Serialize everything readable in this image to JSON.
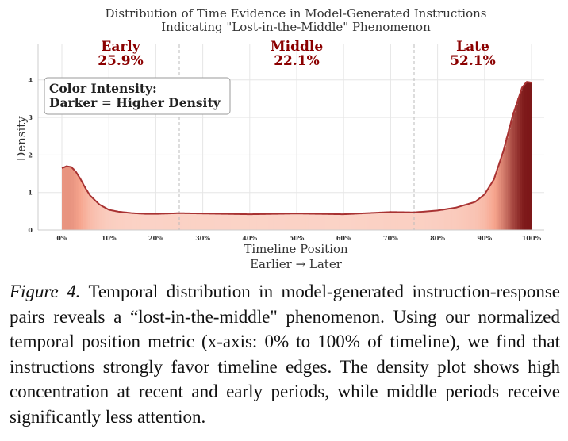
{
  "chart_data": {
    "type": "area",
    "title_lines": [
      "Distribution of Time Evidence in Model-Generated Instructions",
      "Indicating \"Lost-in-the-Middle\" Phenomenon"
    ],
    "xlabel": "Timeline Position",
    "xlabel_sub": "Earlier → Later",
    "ylabel": "Density",
    "xlim": [
      0,
      100
    ],
    "ylim": [
      0,
      4.2
    ],
    "x_ticks": [
      "0%",
      "10%",
      "20%",
      "30%",
      "40%",
      "50%",
      "60%",
      "70%",
      "80%",
      "90%",
      "100%"
    ],
    "y_ticks": [
      "0",
      "1",
      "2",
      "3",
      "4"
    ],
    "grid": true,
    "region_dividers": [
      25,
      75
    ],
    "regions": [
      {
        "name": "Early",
        "percent": "25.9%",
        "center": 12.5
      },
      {
        "name": "Middle",
        "percent": "22.1%",
        "center": 50
      },
      {
        "name": "Late",
        "percent": "52.1%",
        "center": 87.5
      }
    ],
    "annotation": {
      "line1": "Color Intensity:",
      "line2": "Darker = Higher Density",
      "position": "top-left"
    },
    "series": [
      {
        "x": [
          0,
          1,
          2,
          3,
          4,
          5,
          6,
          8,
          10,
          12,
          15,
          18,
          20,
          25,
          30,
          35,
          40,
          45,
          50,
          55,
          60,
          65,
          70,
          75,
          80,
          84,
          88,
          90,
          92,
          94,
          96,
          98,
          99,
          100
        ],
        "y": [
          1.65,
          1.7,
          1.68,
          1.55,
          1.35,
          1.12,
          0.92,
          0.68,
          0.54,
          0.49,
          0.45,
          0.43,
          0.43,
          0.45,
          0.44,
          0.43,
          0.42,
          0.43,
          0.44,
          0.43,
          0.42,
          0.45,
          0.48,
          0.47,
          0.52,
          0.6,
          0.75,
          0.95,
          1.35,
          2.1,
          3.05,
          3.8,
          3.95,
          3.93
        ]
      }
    ],
    "colors": {
      "curve": "#a83232",
      "fill_light": "#fde7df",
      "fill_mid": "#f6a48d",
      "fill_dark": "#7a1416",
      "region_label": "#8b0000"
    }
  },
  "caption": {
    "label": "Figure 4.",
    "text": " Temporal distribution in model-generated instruction-response pairs reveals a “lost-in-the-middle\" phenomenon. Using our normalized temporal position metric (x-axis: 0% to 100% of timeline), we find that instructions strongly favor timeline edges. The density plot shows high concentration at recent and early periods, while middle periods receive significantly less attention."
  }
}
